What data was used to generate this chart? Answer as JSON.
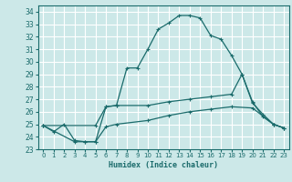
{
  "xlabel": "Humidex (Indice chaleur)",
  "bg_color": "#cce8e8",
  "grid_color": "#ffffff",
  "line_color": "#1a6b6b",
  "xlim": [
    -0.5,
    23.5
  ],
  "ylim": [
    23,
    34.5
  ],
  "yticks": [
    23,
    24,
    25,
    26,
    27,
    28,
    29,
    30,
    31,
    32,
    33,
    34
  ],
  "xticks": [
    0,
    1,
    2,
    3,
    4,
    5,
    6,
    7,
    8,
    9,
    10,
    11,
    12,
    13,
    14,
    15,
    16,
    17,
    18,
    19,
    20,
    21,
    22,
    23
  ],
  "series1": [
    [
      0,
      24.9
    ],
    [
      1,
      24.4
    ],
    [
      2,
      25.0
    ],
    [
      3,
      23.7
    ],
    [
      4,
      23.6
    ],
    [
      5,
      23.6
    ],
    [
      6,
      26.4
    ],
    [
      7,
      26.5
    ],
    [
      8,
      29.5
    ],
    [
      9,
      29.5
    ],
    [
      10,
      31.0
    ],
    [
      11,
      32.6
    ],
    [
      12,
      33.1
    ],
    [
      13,
      33.7
    ],
    [
      14,
      33.7
    ],
    [
      15,
      33.5
    ],
    [
      16,
      32.1
    ],
    [
      17,
      31.8
    ],
    [
      18,
      30.5
    ],
    [
      19,
      29.0
    ],
    [
      20,
      26.7
    ],
    [
      21,
      25.8
    ],
    [
      22,
      25.0
    ],
    [
      23,
      24.7
    ]
  ],
  "series2": [
    [
      0,
      24.9
    ],
    [
      5,
      24.9
    ],
    [
      6,
      26.4
    ],
    [
      7,
      26.5
    ],
    [
      10,
      26.5
    ],
    [
      12,
      26.8
    ],
    [
      14,
      27.0
    ],
    [
      16,
      27.2
    ],
    [
      18,
      27.4
    ],
    [
      19,
      29.0
    ],
    [
      20,
      26.8
    ],
    [
      21,
      25.6
    ],
    [
      22,
      25.0
    ],
    [
      23,
      24.7
    ]
  ],
  "series3": [
    [
      0,
      24.9
    ],
    [
      3,
      23.6
    ],
    [
      4,
      23.6
    ],
    [
      5,
      23.6
    ],
    [
      6,
      24.8
    ],
    [
      7,
      25.0
    ],
    [
      10,
      25.3
    ],
    [
      12,
      25.7
    ],
    [
      14,
      26.0
    ],
    [
      16,
      26.2
    ],
    [
      18,
      26.4
    ],
    [
      20,
      26.3
    ],
    [
      22,
      25.0
    ],
    [
      23,
      24.7
    ]
  ]
}
